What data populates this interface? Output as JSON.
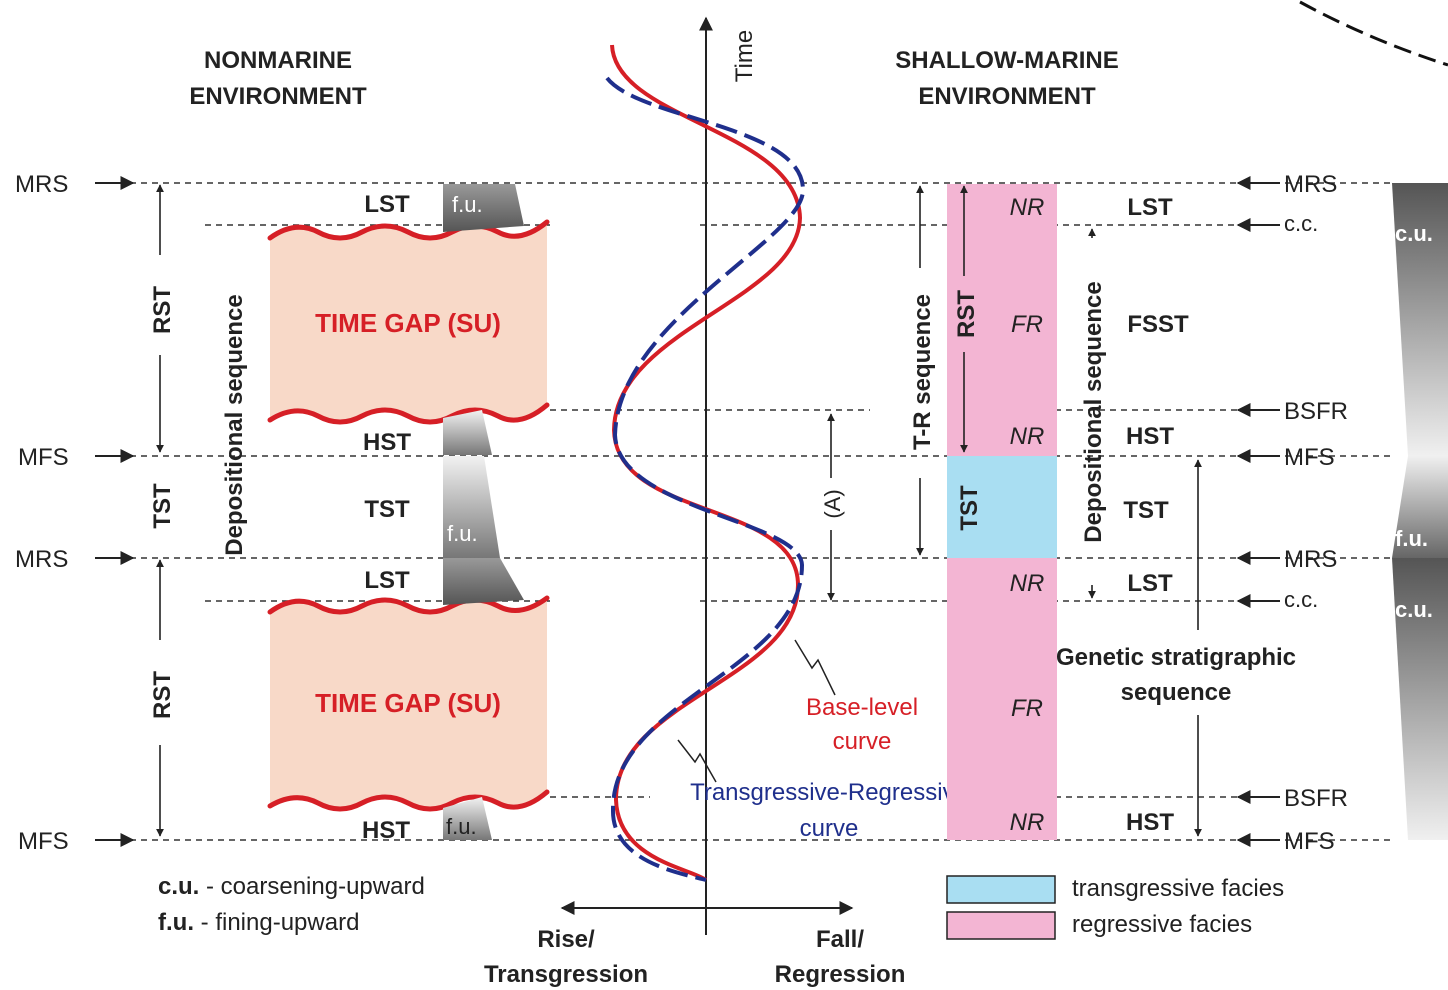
{
  "headers": {
    "nonmarine_line1": "NONMARINE",
    "nonmarine_line2": "ENVIRONMENT",
    "marine_line1": "SHALLOW-MARINE",
    "marine_line2": "ENVIRONMENT",
    "time_axis": "Time"
  },
  "left_markers": {
    "mrs": "MRS",
    "mfs": "MFS"
  },
  "left_tracts": {
    "rst": "RST",
    "tst": "TST",
    "depositional_sequence": "Depositional sequence",
    "lst": "LST",
    "hst": "HST",
    "tst_inner": "TST",
    "time_gap": "TIME GAP (SU)",
    "fu": "f.u."
  },
  "curves": {
    "base_level_line1": "Base-level",
    "base_level_line2": "curve",
    "tr_line1": "Transgressive-Regressive",
    "tr_line2": "curve",
    "a_label": "(A)"
  },
  "axis": {
    "rise_line1": "Rise/",
    "rise_line2": "Transgression",
    "fall_line1": "Fall/",
    "fall_line2": "Regression"
  },
  "marine": {
    "tr_sequence": "T-R sequence",
    "rst": "RST",
    "tst": "TST",
    "nr": "NR",
    "fr": "FR",
    "depositional_sequence": "Depositional sequence",
    "lst": "LST",
    "fsst": "FSST",
    "hst": "HST",
    "tst_tract": "TST",
    "genetic_line1": "Genetic stratigraphic",
    "genetic_line2": "sequence"
  },
  "right_markers": {
    "mrs": "MRS",
    "cc": "c.c.",
    "bsfr": "BSFR",
    "mfs": "MFS"
  },
  "right_column": {
    "cu": "c.u.",
    "fu": "f.u."
  },
  "legend": {
    "cu_abbr": "c.u.",
    "cu_text": " - coarsening-upward",
    "fu_abbr": "f.u.",
    "fu_text": " - fining-upward",
    "transgressive": "transgressive facies",
    "regressive": "regressive facies"
  },
  "colors": {
    "time_gap_fill": "#f8d9c8",
    "wavy_unconformity": "#d61f26",
    "base_level_curve": "#d61f26",
    "tr_curve": "#1f2f8c",
    "transgressive_facies": "#a9def2",
    "regressive_facies": "#f3b5d3"
  }
}
